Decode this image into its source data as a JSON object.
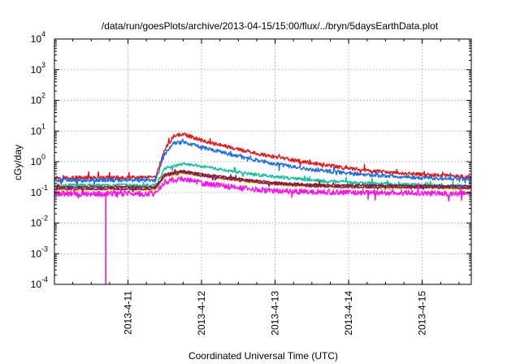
{
  "chart_data": {
    "type": "line",
    "title": "/data/run/goesPlots/archive/2013-04-15/15:00/flux/../bryn/5daysEarthData.plot",
    "xlabel": "Coordinated Universal Time (UTC)",
    "ylabel": "cGy/day",
    "yscale": "log",
    "ylim": [
      0.0001,
      10000
    ],
    "xlim": [
      "2013-04-10 00:00",
      "2013-04-15 16:00"
    ],
    "xticks": [
      "2013-4-11",
      "2013-4-12",
      "2013-4-13",
      "2013-4-14",
      "2013-4-15"
    ],
    "yticks": [
      {
        "base": "10",
        "exp": "-4"
      },
      {
        "base": "10",
        "exp": "-3"
      },
      {
        "base": "10",
        "exp": "-2"
      },
      {
        "base": "10",
        "exp": "-1"
      },
      {
        "base": "10",
        "exp": "0"
      },
      {
        "base": "10",
        "exp": "1"
      },
      {
        "base": "10",
        "exp": "2"
      },
      {
        "base": "10",
        "exp": "3"
      },
      {
        "base": "10",
        "exp": "4"
      }
    ],
    "grid": true,
    "legend": "none",
    "series": [
      {
        "color": "#ee1111",
        "noise": 0.06,
        "points": [
          [
            "2013-04-10 00:00",
            0.3
          ],
          [
            "2013-04-11 06:00",
            0.3
          ],
          [
            "2013-04-11 09:00",
            0.3
          ],
          [
            "2013-04-11 12:00",
            2.5
          ],
          [
            "2013-04-11 15:00",
            7.0
          ],
          [
            "2013-04-11 18:00",
            8.0
          ],
          [
            "2013-04-12 00:00",
            5.0
          ],
          [
            "2013-04-12 12:00",
            2.5
          ],
          [
            "2013-04-13 00:00",
            1.4
          ],
          [
            "2013-04-13 12:00",
            0.9
          ],
          [
            "2013-04-14 00:00",
            0.6
          ],
          [
            "2013-04-14 12:00",
            0.45
          ],
          [
            "2013-04-15 00:00",
            0.38
          ],
          [
            "2013-04-15 16:00",
            0.32
          ]
        ]
      },
      {
        "color": "#1a6fe8",
        "noise": 0.06,
        "points": [
          [
            "2013-04-10 00:00",
            0.25
          ],
          [
            "2013-04-11 06:00",
            0.25
          ],
          [
            "2013-04-11 09:00",
            0.25
          ],
          [
            "2013-04-11 12:00",
            1.8
          ],
          [
            "2013-04-11 15:00",
            4.0
          ],
          [
            "2013-04-11 18:00",
            4.5
          ],
          [
            "2013-04-12 00:00",
            3.0
          ],
          [
            "2013-04-12 12:00",
            1.5
          ],
          [
            "2013-04-13 00:00",
            0.85
          ],
          [
            "2013-04-13 12:00",
            0.55
          ],
          [
            "2013-04-14 00:00",
            0.42
          ],
          [
            "2013-04-14 12:00",
            0.34
          ],
          [
            "2013-04-15 00:00",
            0.3
          ],
          [
            "2013-04-15 16:00",
            0.27
          ]
        ]
      },
      {
        "color": "#11c29a",
        "noise": 0.05,
        "points": [
          [
            "2013-04-10 00:00",
            0.17
          ],
          [
            "2013-04-11 06:00",
            0.17
          ],
          [
            "2013-04-11 09:00",
            0.17
          ],
          [
            "2013-04-11 12:00",
            0.6
          ],
          [
            "2013-04-11 18:00",
            0.85
          ],
          [
            "2013-04-12 00:00",
            0.7
          ],
          [
            "2013-04-12 12:00",
            0.45
          ],
          [
            "2013-04-13 00:00",
            0.32
          ],
          [
            "2013-04-13 12:00",
            0.25
          ],
          [
            "2013-04-14 00:00",
            0.21
          ],
          [
            "2013-04-14 12:00",
            0.19
          ],
          [
            "2013-04-15 00:00",
            0.17
          ],
          [
            "2013-04-15 16:00",
            0.16
          ]
        ]
      },
      {
        "color": "#f0e020",
        "noise": 0.04,
        "points": [
          [
            "2013-04-10 00:00",
            0.12
          ],
          [
            "2013-04-11 06:00",
            0.12
          ],
          [
            "2013-04-11 09:00",
            0.12
          ],
          [
            "2013-04-11 12:00",
            0.32
          ],
          [
            "2013-04-11 18:00",
            0.42
          ],
          [
            "2013-04-12 00:00",
            0.33
          ],
          [
            "2013-04-12 12:00",
            0.24
          ],
          [
            "2013-04-13 00:00",
            0.18
          ],
          [
            "2013-04-13 12:00",
            0.15
          ],
          [
            "2013-04-14 00:00",
            0.14
          ],
          [
            "2013-04-15 16:00",
            0.13
          ]
        ]
      },
      {
        "color": "#7a1090",
        "noise": 0.03,
        "points": [
          [
            "2013-04-10 00:00",
            0.13
          ],
          [
            "2013-04-11 06:00",
            0.13
          ],
          [
            "2013-04-11 09:00",
            0.13
          ],
          [
            "2013-04-11 12:00",
            0.35
          ],
          [
            "2013-04-11 18:00",
            0.45
          ],
          [
            "2013-04-12 00:00",
            0.35
          ],
          [
            "2013-04-12 12:00",
            0.25
          ],
          [
            "2013-04-13 00:00",
            0.19
          ],
          [
            "2013-04-13 12:00",
            0.16
          ],
          [
            "2013-04-14 00:00",
            0.15
          ],
          [
            "2013-04-15 16:00",
            0.14
          ]
        ]
      },
      {
        "color": "#8b1a1a",
        "noise": 0.03,
        "points": [
          [
            "2013-04-10 00:00",
            0.15
          ],
          [
            "2013-04-11 06:00",
            0.15
          ],
          [
            "2013-04-11 09:00",
            0.15
          ],
          [
            "2013-04-11 12:00",
            0.4
          ],
          [
            "2013-04-11 18:00",
            0.5
          ],
          [
            "2013-04-12 00:00",
            0.4
          ],
          [
            "2013-04-12 12:00",
            0.28
          ],
          [
            "2013-04-13 00:00",
            0.21
          ],
          [
            "2013-04-13 12:00",
            0.18
          ],
          [
            "2013-04-14 00:00",
            0.17
          ],
          [
            "2013-04-15 16:00",
            0.16
          ]
        ]
      },
      {
        "color": "#ff10f0",
        "noise": 0.09,
        "points": [
          [
            "2013-04-10 00:00",
            0.09
          ],
          [
            "2013-04-10 16:44",
            0.09
          ],
          [
            "2013-04-10 16:45",
            0.0001
          ],
          [
            "2013-04-10 16:46",
            0.09
          ],
          [
            "2013-04-11 06:00",
            0.09
          ],
          [
            "2013-04-11 09:00",
            0.09
          ],
          [
            "2013-04-11 12:00",
            0.22
          ],
          [
            "2013-04-11 18:00",
            0.28
          ],
          [
            "2013-04-12 00:00",
            0.2
          ],
          [
            "2013-04-12 12:00",
            0.14
          ],
          [
            "2013-04-13 00:00",
            0.11
          ],
          [
            "2013-04-14 00:00",
            0.1
          ],
          [
            "2013-04-15 16:00",
            0.09
          ]
        ]
      }
    ]
  }
}
